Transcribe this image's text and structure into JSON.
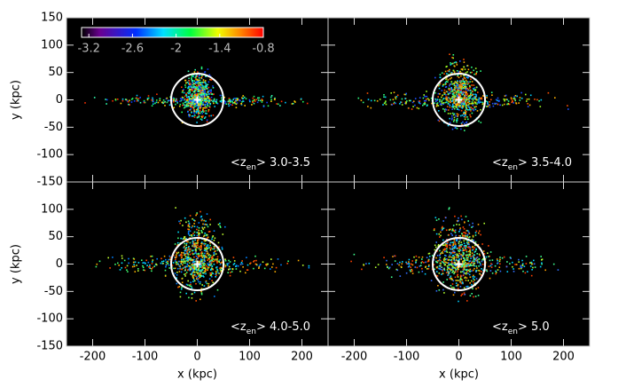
{
  "chart_data": [
    {
      "type": "image",
      "label": {
        "prefix": "<z",
        "sub": "en",
        "suffix": "> 3.0-3.5"
      },
      "ylabel": "y (kpc)",
      "xlim": [
        -250,
        250
      ],
      "ylim": [
        -150,
        150
      ],
      "xticks": [
        -200,
        -100,
        0,
        100,
        200
      ],
      "yticks": [
        -150,
        -100,
        -50,
        0,
        50,
        100,
        150
      ],
      "x_tick_labels": false,
      "y_tick_labels": true,
      "colorbar": {
        "lim": [
          -3.3,
          -0.8
        ],
        "ticks": [
          -3.2,
          -2.6,
          -2.0,
          -1.4,
          -0.8
        ]
      }
    },
    {
      "type": "image",
      "label": {
        "prefix": "<z",
        "sub": "en",
        "suffix": "> 3.5-4.0"
      },
      "xlim": [
        -250,
        250
      ],
      "ylim": [
        -150,
        150
      ],
      "xticks": [
        -200,
        -100,
        0,
        100,
        200
      ],
      "yticks": [
        -150,
        -100,
        -50,
        0,
        50,
        100,
        150
      ],
      "x_tick_labels": false,
      "y_tick_labels": false
    },
    {
      "type": "image",
      "label": {
        "prefix": "<z",
        "sub": "en",
        "suffix": "> 4.0-5.0"
      },
      "xlabel": "x (kpc)",
      "ylabel": "y (kpc)",
      "xlim": [
        -250,
        250
      ],
      "ylim": [
        -150,
        150
      ],
      "xticks": [
        -200,
        -100,
        0,
        100,
        200
      ],
      "yticks": [
        -150,
        -100,
        -50,
        0,
        50,
        100
      ],
      "x_tick_labels": true,
      "y_tick_labels": true
    },
    {
      "type": "image",
      "label": {
        "prefix": "<z",
        "sub": "en",
        "suffix": ">  5.0"
      },
      "xlabel": "x (kpc)",
      "xlim": [
        -250,
        250
      ],
      "ylim": [
        -150,
        150
      ],
      "xticks": [
        -200,
        -100,
        0,
        100,
        200
      ],
      "yticks": [
        -150,
        -100,
        -50,
        0,
        50,
        100,
        150
      ],
      "x_tick_labels": true,
      "y_tick_labels": false
    }
  ]
}
